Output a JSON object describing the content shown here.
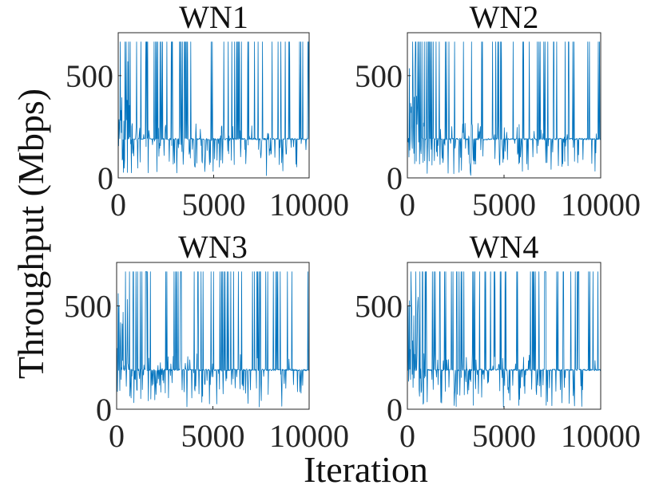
{
  "figure": {
    "ylabel": "Throughput (Mbps)",
    "xlabel": "Iteration"
  },
  "chart_data": [
    {
      "type": "line",
      "title": "WN1",
      "xlim": [
        0,
        10000
      ],
      "ylim": [
        0,
        710
      ],
      "xticks": [
        0,
        5000,
        10000
      ],
      "yticks": [
        0,
        500
      ],
      "xtick_labels": [
        "0",
        "5000",
        "10000"
      ],
      "ytick_labels": [
        "0",
        "500"
      ],
      "baseline": 190,
      "peak": 665,
      "color": "#0072BD"
    },
    {
      "type": "line",
      "title": "WN2",
      "xlim": [
        0,
        10000
      ],
      "ylim": [
        0,
        710
      ],
      "xticks": [
        0,
        5000,
        10000
      ],
      "yticks": [
        0,
        500
      ],
      "xtick_labels": [
        "0",
        "5000",
        "10000"
      ],
      "ytick_labels": [
        "0",
        "500"
      ],
      "baseline": 190,
      "peak": 665,
      "color": "#0072BD"
    },
    {
      "type": "line",
      "title": "WN3",
      "xlim": [
        0,
        10000
      ],
      "ylim": [
        0,
        710
      ],
      "xticks": [
        0,
        5000,
        10000
      ],
      "yticks": [
        0,
        500
      ],
      "xtick_labels": [
        "0",
        "5000",
        "10000"
      ],
      "ytick_labels": [
        "0",
        "500"
      ],
      "baseline": 190,
      "peak": 665,
      "color": "#0072BD"
    },
    {
      "type": "line",
      "title": "WN4",
      "xlim": [
        0,
        10000
      ],
      "ylim": [
        0,
        710
      ],
      "xticks": [
        0,
        5000,
        10000
      ],
      "yticks": [
        0,
        500
      ],
      "xtick_labels": [
        "0",
        "5000",
        "10000"
      ],
      "ytick_labels": [
        "0",
        "500"
      ],
      "baseline": 190,
      "peak": 665,
      "color": "#0072BD"
    }
  ]
}
